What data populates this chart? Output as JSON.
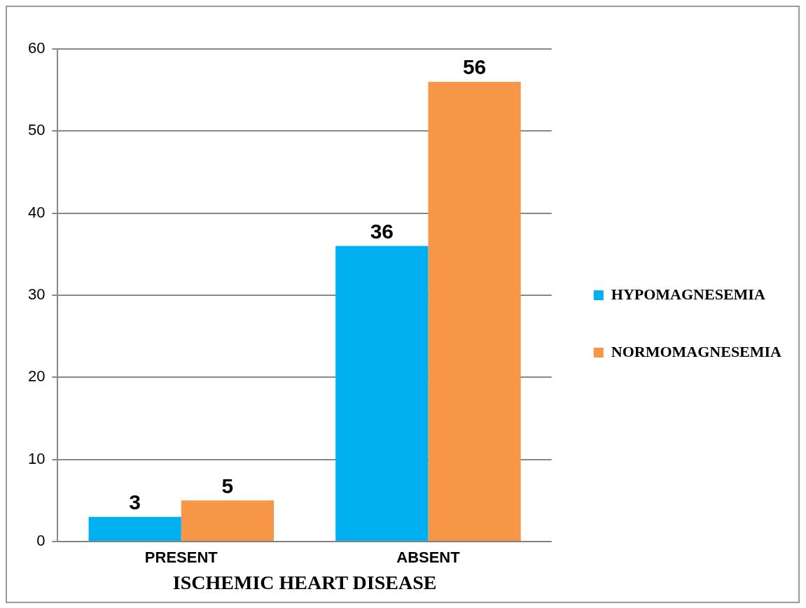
{
  "chart_data": {
    "type": "bar",
    "xlabel": "ISCHEMIC HEART DISEASE",
    "categories": [
      "PRESENT",
      "ABSENT"
    ],
    "series": [
      {
        "name": "HYPOMAGNESEMIA",
        "color": "#00b0f0",
        "values": [
          3,
          36
        ]
      },
      {
        "name": "NORMOMAGNESEMIA",
        "color": "#f79646",
        "values": [
          5,
          56
        ]
      }
    ],
    "ylim": [
      0,
      60
    ],
    "yticks": [
      0,
      10,
      20,
      30,
      40,
      50,
      60
    ],
    "grid": "y",
    "legend": "right",
    "data_labels": true
  }
}
